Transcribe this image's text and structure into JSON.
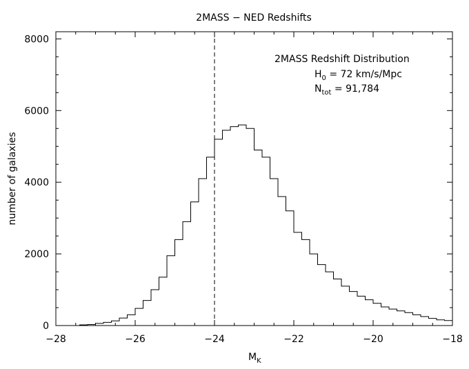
{
  "chart_data": {
    "type": "bar",
    "title": "2MASS − NED Redshifts",
    "xlabel": "M",
    "xlabel_sub": "K",
    "ylabel": "number of galaxies",
    "xlim": [
      -28,
      -18
    ],
    "ylim": [
      0,
      8200
    ],
    "x_ticks": [
      -28,
      -26,
      -24,
      -22,
      -20,
      -18
    ],
    "x_tick_labels": [
      "−28",
      "−26",
      "−24",
      "−22",
      "−20",
      "−18"
    ],
    "y_ticks": [
      0,
      2000,
      4000,
      6000,
      8000
    ],
    "y_tick_labels": [
      "0",
      "2000",
      "4000",
      "6000",
      "8000"
    ],
    "grid": false,
    "reference_line": {
      "x": -24.0,
      "style": "dashed"
    },
    "annotations": {
      "line1": "2MASS Redshift Distribution",
      "line2_main": "H",
      "line2_sub": "0",
      "line2_rest": " = 72 km/s/Mpc",
      "line3_main": "N",
      "line3_sub": "tot",
      "line3_rest": " = 91,784"
    },
    "bin_width": 0.2,
    "bins_start": [
      -27.4,
      -27.2,
      -27.0,
      -26.8,
      -26.6,
      -26.4,
      -26.2,
      -26.0,
      -25.8,
      -25.6,
      -25.4,
      -25.2,
      -25.0,
      -24.8,
      -24.6,
      -24.4,
      -24.2,
      -24.0,
      -23.8,
      -23.6,
      -23.4,
      -23.2,
      -23.0,
      -22.8,
      -22.6,
      -22.4,
      -22.2,
      -22.0,
      -21.8,
      -21.6,
      -21.4,
      -21.2,
      -21.0,
      -20.8,
      -20.6,
      -20.4,
      -20.2,
      -20.0,
      -19.8,
      -19.6,
      -19.4,
      -19.2,
      -19.0,
      -18.8,
      -18.6,
      -18.4,
      -18.2
    ],
    "counts": [
      20,
      30,
      60,
      90,
      130,
      210,
      300,
      480,
      700,
      1000,
      1350,
      1950,
      2400,
      2900,
      3450,
      4100,
      4700,
      5200,
      5450,
      5550,
      5600,
      5500,
      4900,
      4700,
      4100,
      3600,
      3200,
      2600,
      2400,
      2000,
      1700,
      1500,
      1300,
      1100,
      950,
      820,
      720,
      620,
      520,
      460,
      410,
      360,
      300,
      250,
      200,
      160,
      140
    ]
  }
}
